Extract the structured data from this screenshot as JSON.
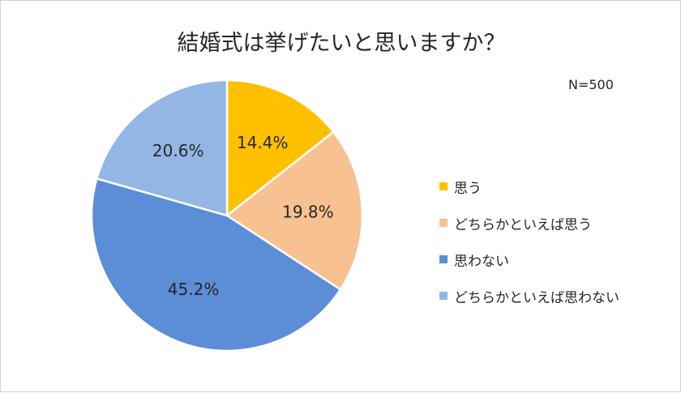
{
  "chart_data": {
    "type": "pie",
    "title": "結婚式は挙げたいと思いますか？",
    "note": "N=500",
    "slices": [
      {
        "label": "思う",
        "value": 14.4,
        "display": "14.4%",
        "color": "#FFC000"
      },
      {
        "label": "どちらかといえば思う",
        "value": 19.8,
        "display": "19.8%",
        "color": "#F8C192"
      },
      {
        "label": "思わない",
        "value": 45.2,
        "display": "45.2%",
        "color": "#5B8ED6"
      },
      {
        "label": "どちらかといえば思わない",
        "value": 20.6,
        "display": "20.6%",
        "color": "#93B6E4"
      }
    ],
    "start_angle": "12 o'clock",
    "direction": "clockwise",
    "legend_position": "right"
  }
}
